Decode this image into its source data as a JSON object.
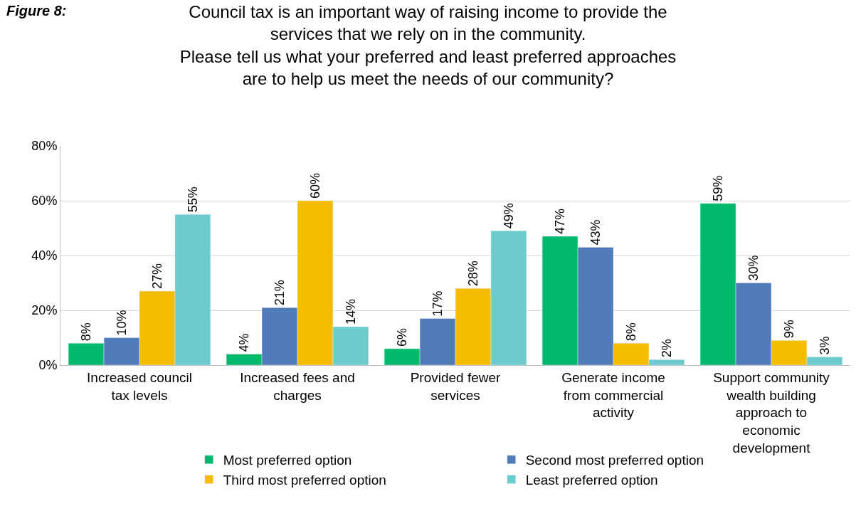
{
  "chart_data": {
    "type": "bar",
    "title": "Council tax is an important way of raising income to provide the services that we rely on in the community.",
    "subtitle": "Please tell us what your preferred and least preferred approaches are to help us meet the needs of our community?",
    "annotations": [
      "Figure 8:"
    ],
    "categories": [
      "Increased council tax levels",
      "Increased fees and charges",
      "Provided fewer services",
      "Generate income from commercial activity",
      "Support community wealth building approach to economic development"
    ],
    "series": [
      {
        "name": "Most preferred option",
        "color": "#00b96b",
        "values": [
          8,
          4,
          6,
          47,
          59
        ],
        "value_labels": [
          "8%",
          "4%",
          "6%",
          "47%",
          "59%"
        ]
      },
      {
        "name": "Second most preferred option",
        "color": "#4f7bb8",
        "values": [
          10,
          21,
          17,
          43,
          30
        ],
        "value_labels": [
          "10%",
          "21%",
          "17%",
          "43%",
          "30%"
        ]
      },
      {
        "name": "Third most preferred option",
        "color": "#f5bd00",
        "values": [
          27,
          60,
          28,
          8,
          9
        ],
        "value_labels": [
          "27%",
          "60%",
          "28%",
          "8%",
          "9%"
        ]
      },
      {
        "name": "Least preferred option",
        "color": "#6ccbcc",
        "values": [
          55,
          14,
          49,
          2,
          3
        ],
        "value_labels": [
          "55%",
          "14%",
          "49%",
          "2%",
          "3%"
        ]
      }
    ],
    "ylim": [
      0,
      80
    ],
    "yticks": [
      {
        "value": 0,
        "label": "0%"
      },
      {
        "value": 20,
        "label": "20%"
      },
      {
        "value": 40,
        "label": "40%"
      },
      {
        "value": 60,
        "label": "60%"
      },
      {
        "value": 80,
        "label": "80%"
      }
    ],
    "grid": "y",
    "legend": "bottom"
  }
}
